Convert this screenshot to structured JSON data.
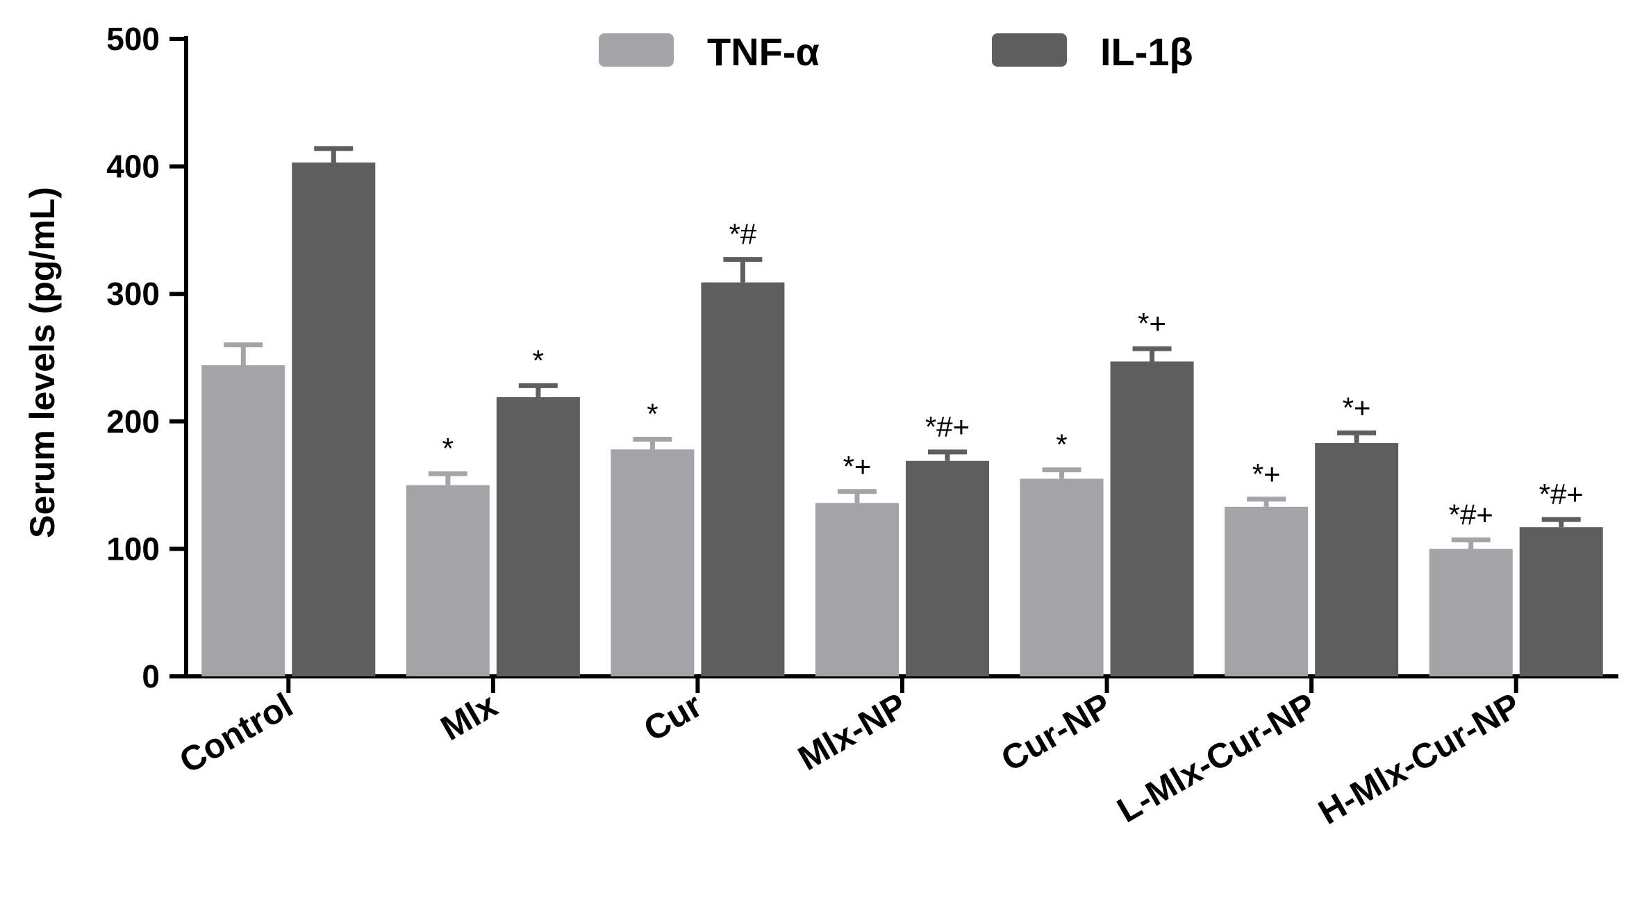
{
  "chart_data": {
    "type": "bar",
    "title": "",
    "xlabel": "",
    "ylabel": "Serum levels (pg/mL)",
    "ylim": [
      0,
      500
    ],
    "yticks": [
      "0",
      "100",
      "200",
      "300",
      "400",
      "500"
    ],
    "ytick_values": [
      0,
      100,
      200,
      300,
      400,
      500
    ],
    "grid": false,
    "legend_position": "top-center",
    "categories": [
      "Control",
      "Mlx",
      "Cur",
      "Mlx-NP",
      "Cur-NP",
      "L-Mlx-Cur-NP",
      "H-Mlx-Cur-NP"
    ],
    "series": [
      {
        "name": "TNF-α",
        "color": "#a4a4a8",
        "values": [
          244,
          150,
          178,
          136,
          155,
          133,
          100
        ],
        "errors": [
          16,
          9,
          8,
          9,
          7,
          6,
          7
        ],
        "significance": [
          "",
          "*",
          "*",
          "*+",
          "*",
          "*+",
          "*#+"
        ]
      },
      {
        "name": "IL-1β",
        "color": "#5e5e5e",
        "values": [
          403,
          219,
          309,
          169,
          247,
          183,
          117
        ],
        "errors": [
          11,
          9,
          18,
          7,
          10,
          8,
          6
        ],
        "significance": [
          "",
          "*",
          "*#",
          "*#+",
          "*+",
          "*+",
          "*#+"
        ]
      }
    ]
  }
}
